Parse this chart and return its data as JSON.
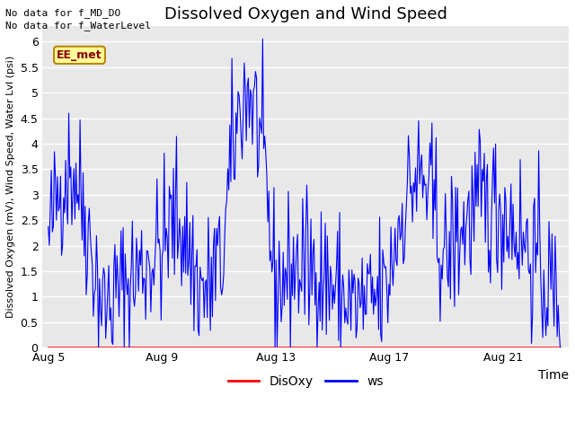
{
  "title": "Dissolved Oxygen and Wind Speed",
  "xlabel": "Time",
  "ylabel": "Dissolved Oxygen (mV), Wind Speed, Water Lvl (psi)",
  "ylim": [
    0.0,
    6.3
  ],
  "yticks": [
    0.0,
    0.5,
    1.0,
    1.5,
    2.0,
    2.5,
    3.0,
    3.5,
    4.0,
    4.5,
    5.0,
    5.5,
    6.0
  ],
  "no_data_texts": [
    "No data for f_MD_DO",
    "No data for f_WaterLevel"
  ],
  "ee_met_label": "EE_met",
  "legend_labels": [
    "DisOxy",
    "ws"
  ],
  "disoxy_color": "red",
  "ws_color": "blue",
  "fig_bg_color": "#ffffff",
  "plot_bg_color": "#e8e8e8",
  "grid_color": "#ffffff",
  "xticklabels": [
    "Aug 5",
    "Aug 9",
    "Aug 13",
    "Aug 17",
    "Aug 21"
  ],
  "xtick_days": [
    0,
    4,
    8,
    12,
    16
  ],
  "xlim": [
    -0.2,
    18.3
  ],
  "seed": 42
}
